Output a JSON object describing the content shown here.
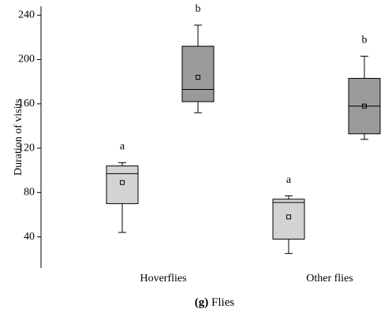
{
  "chart_data": {
    "type": "box",
    "y_label": "Duration of visits",
    "caption_label": "(g)",
    "caption": "Flies",
    "categories": [
      "Hoverflies",
      "Other flies"
    ],
    "series": [
      {
        "color": "#d3d3d3",
        "values": [
          {
            "whislo": 44,
            "q1": 70,
            "med": 97,
            "q3": 104,
            "whishi": 107,
            "mean": 89
          },
          {
            "whislo": 25,
            "q1": 38,
            "med": 71,
            "q3": 74,
            "whishi": 77,
            "mean": 58
          }
        ],
        "letters": [
          "a",
          "a"
        ]
      },
      {
        "color": "#9a9a9a",
        "values": [
          {
            "whislo": 152,
            "q1": 162,
            "med": 173,
            "q3": 212,
            "whishi": 231,
            "mean": 184
          },
          {
            "whislo": 128,
            "q1": 133,
            "med": 158,
            "q3": 183,
            "whishi": 203,
            "mean": 158
          }
        ],
        "letters": [
          "b",
          "b"
        ]
      }
    ],
    "ylim": [
      12,
      248
    ],
    "yticks": [
      40,
      80,
      120,
      160,
      200,
      240
    ]
  }
}
